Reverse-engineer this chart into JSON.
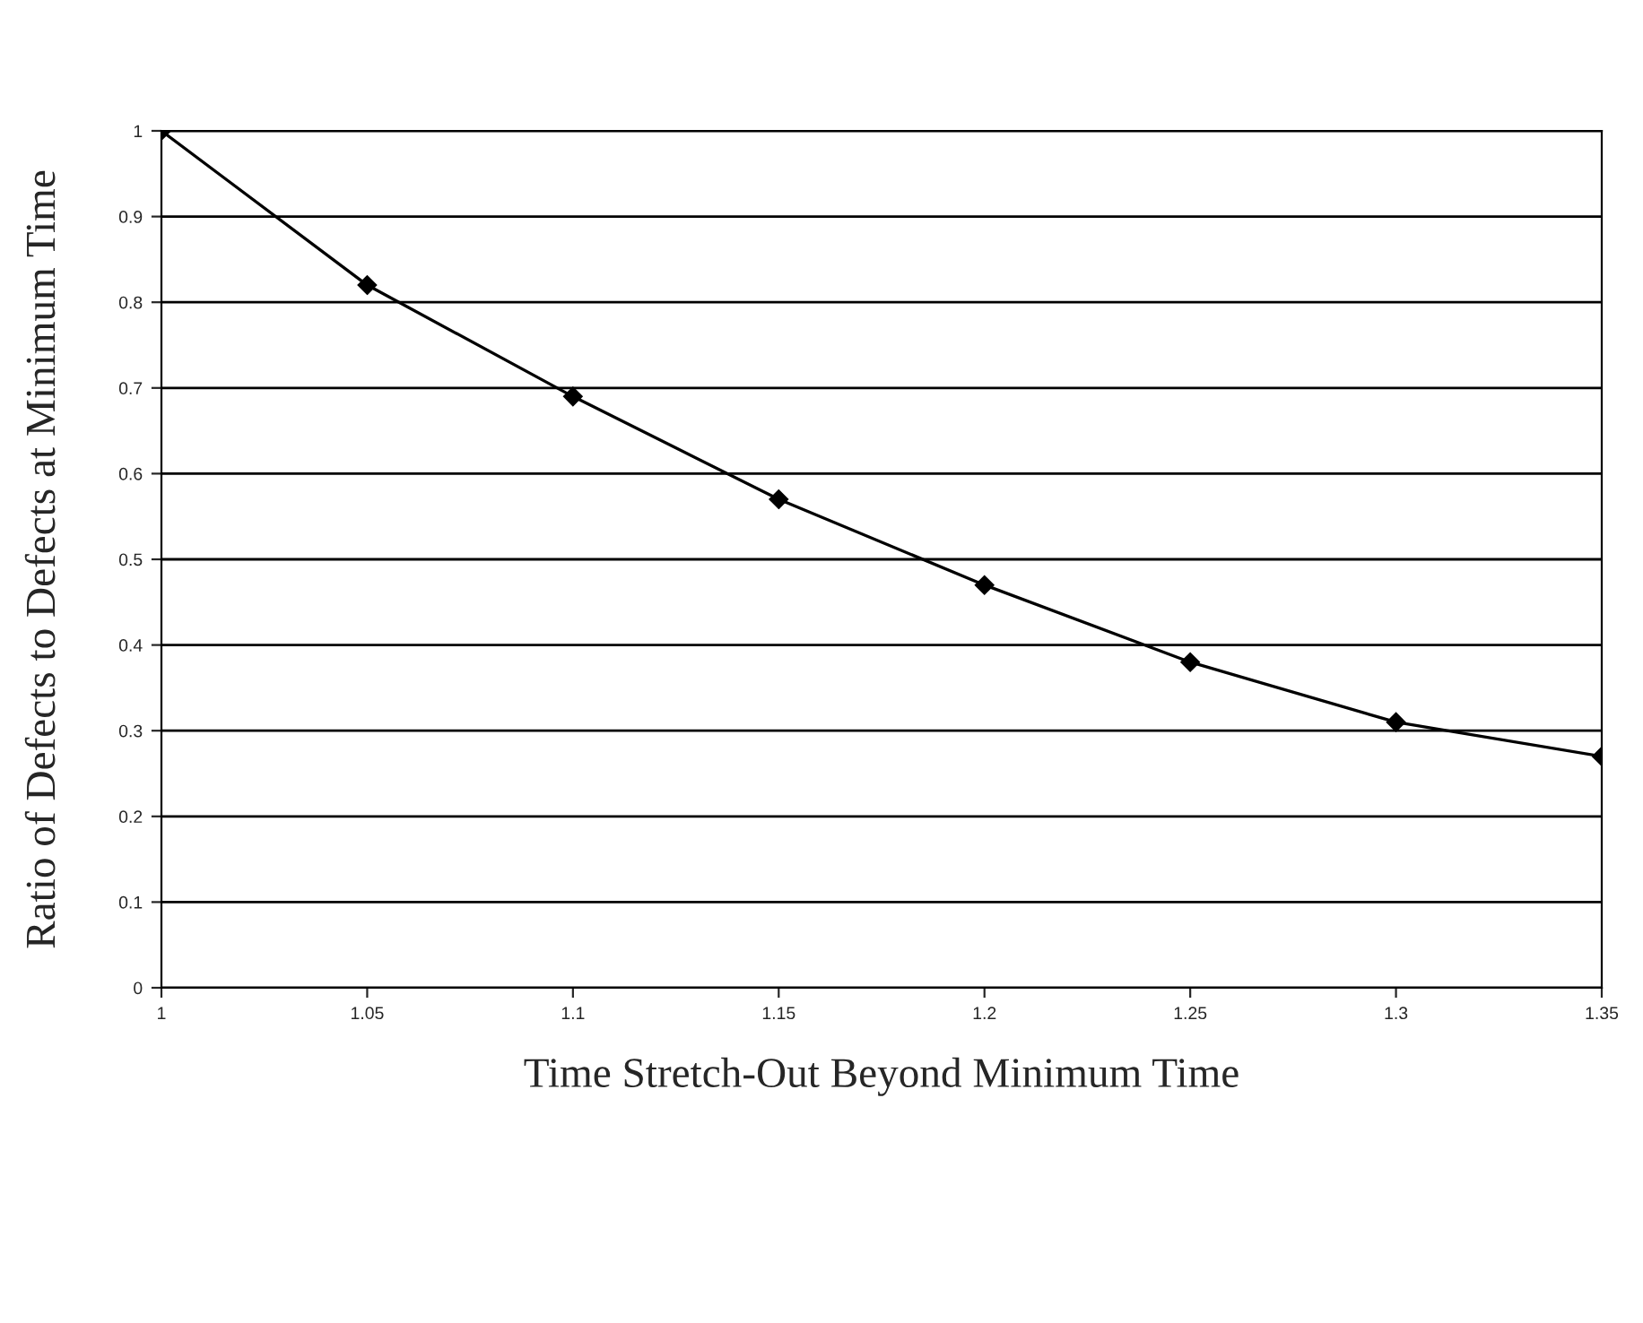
{
  "chart_data": {
    "type": "line",
    "xlabel": "Time Stretch-Out Beyond Minimum Time",
    "ylabel": "Ratio of Defects to Defects at Minimum Time",
    "x": [
      1,
      1.05,
      1.1,
      1.15,
      1.2,
      1.25,
      1.3,
      1.35
    ],
    "series": [
      {
        "color": "#000000",
        "values": [
          1,
          0.82,
          0.69,
          0.57,
          0.47,
          0.38,
          0.31,
          0.27
        ]
      }
    ],
    "xlim": [
      1,
      1.35
    ],
    "xticks": [
      1,
      1.05,
      1.1,
      1.15,
      1.2,
      1.25,
      1.3,
      1.35
    ],
    "ylim": [
      0,
      1
    ],
    "yticks": [
      0,
      0.1,
      0.2,
      0.3,
      0.4,
      0.5,
      0.6,
      0.7,
      0.8,
      0.9,
      1
    ],
    "grid": "y",
    "marker": "diamond",
    "line_style": "solid"
  }
}
